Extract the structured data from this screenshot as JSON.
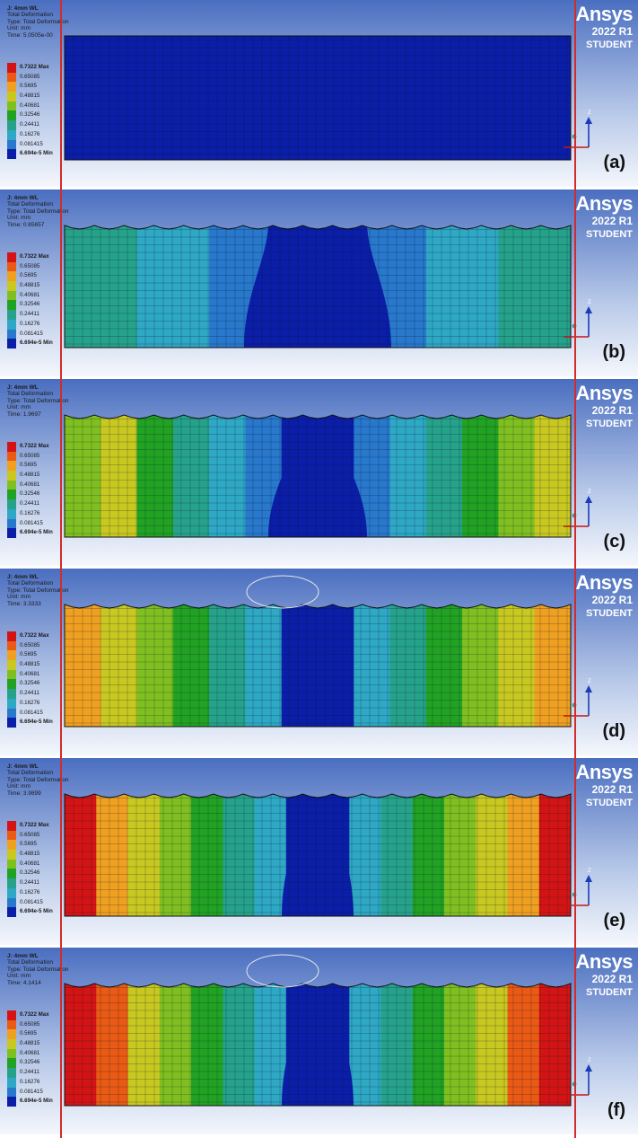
{
  "colors": {
    "legend": [
      "#d41414",
      "#ea5a14",
      "#f0a020",
      "#c8c820",
      "#7fc020",
      "#22a222",
      "#26a28a",
      "#2ea8c4",
      "#2878cc",
      "#0a1ea8"
    ],
    "guide_line": "#d32b2b"
  },
  "icons": [
    "axis-triad-icon",
    "ansys-logo-icon"
  ],
  "legend_labels": [
    {
      "text": "0.7322 Max",
      "bold": true
    },
    {
      "text": "0.65085",
      "bold": false
    },
    {
      "text": "0.5695",
      "bold": false
    },
    {
      "text": "0.48815",
      "bold": false
    },
    {
      "text": "0.40681",
      "bold": false
    },
    {
      "text": "0.32546",
      "bold": false
    },
    {
      "text": "0.24411",
      "bold": false
    },
    {
      "text": "0.16276",
      "bold": false
    },
    {
      "text": "0.081415",
      "bold": false
    },
    {
      "text": "6.694e-5 Min",
      "bold": true
    }
  ],
  "brand": {
    "name": "Ansys",
    "version": "2022 R1",
    "edition": "STUDENT"
  },
  "axis_label": "Z",
  "panels": [
    {
      "label": "(a)",
      "name": "J: 4mm WL",
      "type_line": "Total Deformation",
      "type": "Type: Total Deformation",
      "unit": "Unit: mm",
      "time": "Time: 5.0505e-00",
      "stage": 0
    },
    {
      "label": "(b)",
      "name": "J: 4mm WL",
      "type_line": "Total Deformation",
      "type": "Type: Total Deformation",
      "unit": "Unit: mm",
      "time": "Time: 0.65657",
      "stage": 1
    },
    {
      "label": "(c)",
      "name": "J: 4mm WL",
      "type_line": "Total Deformation",
      "type": "Type: Total Deformation",
      "unit": "Unit: mm",
      "time": "Time: 1.9697",
      "stage": 2
    },
    {
      "label": "(d)",
      "name": "J: 4mm WL",
      "type_line": "Total Deformation",
      "type": "Type: Total Deformation",
      "unit": "Unit: mm",
      "time": "Time: 3.3333",
      "stage": 3
    },
    {
      "label": "(e)",
      "name": "J: 4mm WL",
      "type_line": "Total Deformation",
      "type": "Type: Total Deformation",
      "unit": "Unit: mm",
      "time": "Time: 3.9899",
      "stage": 4
    },
    {
      "label": "(f)",
      "name": "J: 4mm WL",
      "type_line": "Total Deformation",
      "type": "Type: Total Deformation",
      "unit": "Unit: mm",
      "time": "Time: 4.1414",
      "stage": 5
    }
  ]
}
